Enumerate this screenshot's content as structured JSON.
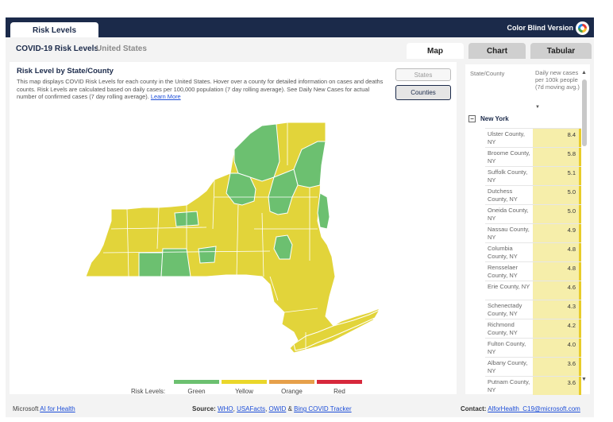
{
  "header": {
    "tab_label": "Risk Levels",
    "color_blind_label": "Color Blind Version",
    "color_blind_icon": "color-wheel-icon"
  },
  "subheader": {
    "title": "COVID-19 Risk Levels",
    "region": "United States"
  },
  "view_tabs": [
    "Map",
    "Chart",
    "Tabular"
  ],
  "map_card": {
    "title": "Risk Level by State/County",
    "description": "This map displays COVID Risk Levels for each county in the United States. Hover over a county for detailed information on cases and deaths counts. Risk Levels are calculated based on daily cases per 100,000 population (7 day rolling average). See Daily New Cases for actual number of confirmed cases (7 day rolling average).",
    "learn_more": "Learn More",
    "states_button": "States",
    "counties_button": "Counties"
  },
  "legend": {
    "label": "Risk Levels:",
    "items": [
      {
        "name": "Green",
        "color": "#6cc070"
      },
      {
        "name": "Yellow",
        "color": "#ead72a"
      },
      {
        "name": "Orange",
        "color": "#e6a04a"
      },
      {
        "name": "Red",
        "color": "#d7283c"
      }
    ]
  },
  "table": {
    "col_state": "State/County",
    "col_value": "Daily new cases per 100k people (7d moving avg.)",
    "sort_icon": "sort-descending-icon",
    "group": "New York",
    "rows": [
      {
        "county": "Ulster County, NY",
        "value": "8.4"
      },
      {
        "county": "Broome County, NY",
        "value": "5.8"
      },
      {
        "county": "Suffolk County, NY",
        "value": "5.1"
      },
      {
        "county": "Dutchess County, NY",
        "value": "5.0"
      },
      {
        "county": "Oneida County, NY",
        "value": "5.0"
      },
      {
        "county": "Nassau County, NY",
        "value": "4.9"
      },
      {
        "county": "Columbia County, NY",
        "value": "4.8"
      },
      {
        "county": "Rensselaer County, NY",
        "value": "4.8"
      },
      {
        "county": "Erie County, NY",
        "value": "4.6"
      },
      {
        "county": "Schenectady County, NY",
        "value": "4.3"
      },
      {
        "county": "Richmond County, NY",
        "value": "4.2"
      },
      {
        "county": "Fulton County, NY",
        "value": "4.0"
      },
      {
        "county": "Albany County, NY",
        "value": "3.6"
      },
      {
        "county": "Putnam County, NY",
        "value": "3.6"
      }
    ]
  },
  "footer": {
    "left_prefix": "Microsoft",
    "left_link": "AI for Health",
    "source_label": "Source:",
    "source_links": [
      "WHO",
      "USAFacts",
      "OWID",
      "Bing COVID Tracker"
    ],
    "source_sep1": ",",
    "source_sep2": ",",
    "source_sep3": "&",
    "contact_label": "Contact:",
    "contact_link": "AlforHealth_C19@microsoft.com"
  }
}
